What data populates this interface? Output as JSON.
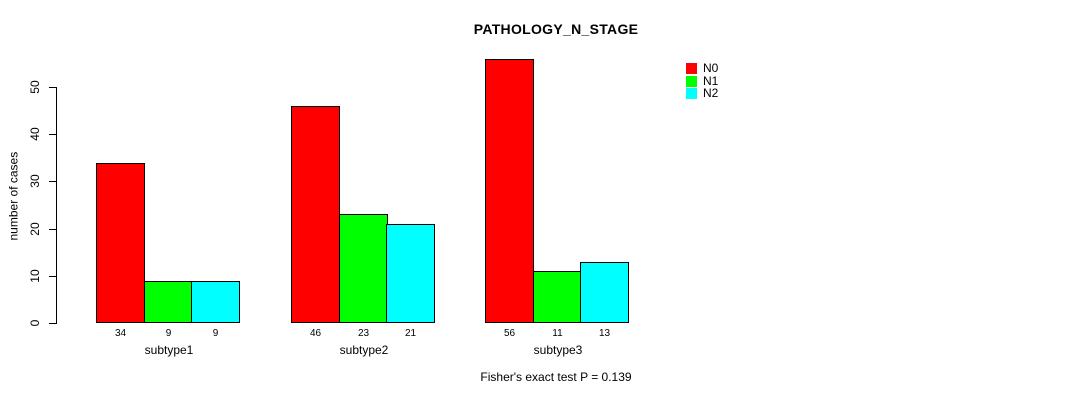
{
  "chart_data": {
    "type": "bar",
    "title": "PATHOLOGY_N_STAGE",
    "ylabel": "number of cases",
    "xlabel": "",
    "categories": [
      "subtype1",
      "subtype2",
      "subtype3"
    ],
    "series": [
      {
        "name": "N0",
        "color": "#ff0000",
        "values": [
          34,
          46,
          56
        ]
      },
      {
        "name": "N1",
        "color": "#00ff00",
        "values": [
          9,
          23,
          11
        ]
      },
      {
        "name": "N2",
        "color": "#00ffff",
        "values": [
          9,
          21,
          13
        ]
      }
    ],
    "bar_value_labels_shown": true,
    "yticks": [
      0,
      10,
      20,
      30,
      40,
      50
    ],
    "ylim": [
      0,
      50
    ],
    "grid": false,
    "legend_position": "top-right",
    "caption": "Fisher's exact test P = 0.139"
  }
}
